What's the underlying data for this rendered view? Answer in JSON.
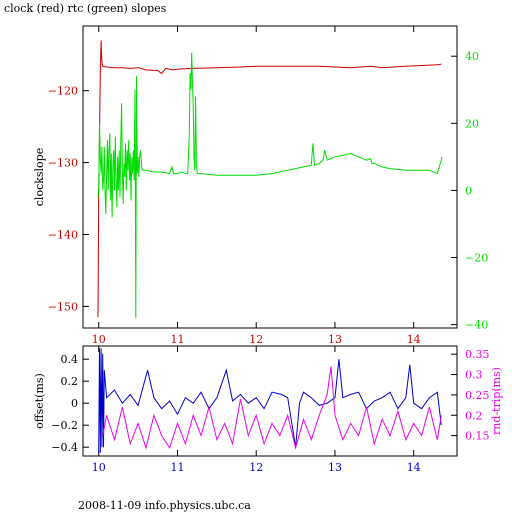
{
  "title": "clock (red) rtc (green) slopes",
  "footer": "2008-11-09 info.physics.ubc.ca",
  "colors": {
    "red": "#cc0000",
    "green": "#00dd00",
    "blue": "#0000cc",
    "magenta": "#ee00ee",
    "axis": "#000000"
  },
  "chart_data": [
    {
      "type": "line",
      "title": "clock (red) rtc (green) slopes",
      "xlim": [
        9.8,
        14.55
      ],
      "x_ticks": [
        10,
        11,
        12,
        13,
        14
      ],
      "ylabel": "clockslope",
      "ylim_left": [
        -153,
        -111
      ],
      "y_ticks_left": [
        -120,
        -130,
        -140,
        -150
      ],
      "ylim_right": [
        -41,
        49
      ],
      "y_ticks_right": [
        40,
        20,
        0,
        -20,
        -40
      ],
      "grid": false,
      "series": [
        {
          "name": "clock",
          "color": "#cc0000",
          "axis": "left",
          "points": [
            [
              9.99,
              -151.5
            ],
            [
              10.0,
              -134
            ],
            [
              10.01,
              -126
            ],
            [
              10.02,
              -117.5
            ],
            [
              10.03,
              -113
            ],
            [
              10.04,
              -116
            ],
            [
              10.05,
              -116.6
            ],
            [
              10.1,
              -116.7
            ],
            [
              10.2,
              -116.8
            ],
            [
              10.3,
              -116.8
            ],
            [
              10.4,
              -116.9
            ],
            [
              10.5,
              -116.8
            ],
            [
              10.6,
              -117.1
            ],
            [
              10.75,
              -117.2
            ],
            [
              10.8,
              -117.6
            ],
            [
              10.85,
              -116.9
            ],
            [
              10.95,
              -117.1
            ],
            [
              11.0,
              -117.0
            ],
            [
              11.2,
              -116.9
            ],
            [
              11.5,
              -116.8
            ],
            [
              11.8,
              -116.7
            ],
            [
              12.0,
              -116.6
            ],
            [
              12.3,
              -116.6
            ],
            [
              12.5,
              -116.6
            ],
            [
              12.8,
              -116.6
            ],
            [
              13.0,
              -116.7
            ],
            [
              13.2,
              -116.8
            ],
            [
              13.45,
              -116.6
            ],
            [
              13.6,
              -116.8
            ],
            [
              13.9,
              -116.6
            ],
            [
              14.1,
              -116.5
            ],
            [
              14.3,
              -116.4
            ],
            [
              14.35,
              -116.3
            ]
          ]
        },
        {
          "name": "rtc",
          "color": "#00dd00",
          "axis": "right",
          "points": [
            [
              9.99,
              -2
            ],
            [
              10.0,
              0
            ],
            [
              10.01,
              20
            ],
            [
              10.02,
              10
            ],
            [
              10.03,
              5
            ],
            [
              10.04,
              13
            ],
            [
              10.05,
              0
            ],
            [
              10.06,
              3
            ],
            [
              10.07,
              13
            ],
            [
              10.08,
              0
            ],
            [
              10.09,
              -7
            ],
            [
              10.1,
              5
            ],
            [
              10.11,
              15
            ],
            [
              10.12,
              0
            ],
            [
              10.13,
              12
            ],
            [
              10.14,
              17
            ],
            [
              10.15,
              -3
            ],
            [
              10.16,
              11
            ],
            [
              10.17,
              -8
            ],
            [
              10.18,
              8
            ],
            [
              10.19,
              12
            ],
            [
              10.2,
              0
            ],
            [
              10.21,
              16
            ],
            [
              10.22,
              2
            ],
            [
              10.23,
              -5
            ],
            [
              10.24,
              10
            ],
            [
              10.25,
              0
            ],
            [
              10.26,
              12
            ],
            [
              10.27,
              -2
            ],
            [
              10.28,
              15
            ],
            [
              10.29,
              26
            ],
            [
              10.3,
              5
            ],
            [
              10.31,
              -4
            ],
            [
              10.32,
              8
            ],
            [
              10.33,
              4
            ],
            [
              10.34,
              14
            ],
            [
              10.35,
              0
            ],
            [
              10.36,
              12
            ],
            [
              10.37,
              6
            ],
            [
              10.38,
              15
            ],
            [
              10.39,
              3
            ],
            [
              10.4,
              11
            ],
            [
              10.41,
              -3
            ],
            [
              10.42,
              10
            ],
            [
              10.43,
              5
            ],
            [
              10.44,
              12
            ],
            [
              10.45,
              3
            ],
            [
              10.46,
              30
            ],
            [
              10.47,
              -38
            ],
            [
              10.48,
              34
            ],
            [
              10.49,
              5
            ],
            [
              10.5,
              10
            ],
            [
              10.51,
              4
            ],
            [
              10.52,
              10
            ],
            [
              10.53,
              12
            ],
            [
              10.55,
              6
            ],
            [
              10.6,
              6
            ],
            [
              10.7,
              5.5
            ],
            [
              10.8,
              5.5
            ],
            [
              10.9,
              5
            ],
            [
              10.93,
              7
            ],
            [
              10.95,
              5
            ],
            [
              11.0,
              5
            ],
            [
              11.05,
              5.5
            ],
            [
              11.1,
              5
            ],
            [
              11.13,
              5
            ],
            [
              11.15,
              17
            ],
            [
              11.16,
              35
            ],
            [
              11.17,
              30
            ],
            [
              11.18,
              41
            ],
            [
              11.19,
              33
            ],
            [
              11.2,
              25
            ],
            [
              11.21,
              10
            ],
            [
              11.22,
              6
            ],
            [
              11.23,
              28
            ],
            [
              11.24,
              8
            ],
            [
              11.25,
              5
            ],
            [
              11.3,
              5
            ],
            [
              11.5,
              4.5
            ],
            [
              11.8,
              4.5
            ],
            [
              12.0,
              4.5
            ],
            [
              12.2,
              5
            ],
            [
              12.4,
              6
            ],
            [
              12.6,
              7
            ],
            [
              12.7,
              7.5
            ],
            [
              12.72,
              14
            ],
            [
              12.74,
              7.5
            ],
            [
              12.8,
              8
            ],
            [
              12.85,
              9
            ],
            [
              12.87,
              12
            ],
            [
              12.9,
              9
            ],
            [
              13.0,
              10
            ],
            [
              13.1,
              10.5
            ],
            [
              13.2,
              11
            ],
            [
              13.3,
              10
            ],
            [
              13.4,
              9
            ],
            [
              13.45,
              9.5
            ],
            [
              13.47,
              8
            ],
            [
              13.5,
              8
            ],
            [
              13.6,
              7
            ],
            [
              13.7,
              6.5
            ],
            [
              13.9,
              6
            ],
            [
              14.0,
              6
            ],
            [
              14.1,
              6
            ],
            [
              14.2,
              6
            ],
            [
              14.3,
              5
            ],
            [
              14.35,
              9
            ],
            [
              14.36,
              10
            ]
          ]
        }
      ]
    },
    {
      "type": "line",
      "xlim": [
        9.8,
        14.55
      ],
      "x_ticks": [
        10,
        11,
        12,
        13,
        14
      ],
      "ylabel": "offset(ms)",
      "ylim_left": [
        -0.48,
        0.52
      ],
      "y_ticks_left": [
        0.4,
        0.2,
        0,
        -0.2,
        -0.4
      ],
      "ylabel_right": "rnd-trip(ms)",
      "ylim_right": [
        0.1,
        0.37
      ],
      "y_ticks_right": [
        0.35,
        0.3,
        0.25,
        0.2,
        0.15
      ],
      "grid": false,
      "series": [
        {
          "name": "offset",
          "color": "#0000cc",
          "axis": "left",
          "points": [
            [
              10.0,
              -0.45
            ],
            [
              10.01,
              0.5
            ],
            [
              10.02,
              -0.45
            ],
            [
              10.03,
              0.5
            ],
            [
              10.04,
              -0.4
            ],
            [
              10.05,
              0.45
            ],
            [
              10.06,
              -0.4
            ],
            [
              10.07,
              0.3
            ],
            [
              10.1,
              0.05
            ],
            [
              10.2,
              0.12
            ],
            [
              10.3,
              0.0
            ],
            [
              10.4,
              0.08
            ],
            [
              10.5,
              -0.02
            ],
            [
              10.62,
              0.3
            ],
            [
              10.7,
              0.05
            ],
            [
              10.8,
              -0.05
            ],
            [
              10.9,
              0.02
            ],
            [
              11.0,
              -0.1
            ],
            [
              11.1,
              0.05
            ],
            [
              11.2,
              0.0
            ],
            [
              11.3,
              0.1
            ],
            [
              11.4,
              -0.05
            ],
            [
              11.5,
              0.05
            ],
            [
              11.62,
              0.3
            ],
            [
              11.7,
              0.02
            ],
            [
              11.8,
              0.08
            ],
            [
              11.9,
              0.0
            ],
            [
              12.0,
              0.05
            ],
            [
              12.1,
              -0.05
            ],
            [
              12.2,
              0.1
            ],
            [
              12.32,
              0.08
            ],
            [
              12.4,
              0.05
            ],
            [
              12.5,
              -0.4
            ],
            [
              12.55,
              0.0
            ],
            [
              12.6,
              0.1
            ],
            [
              12.7,
              0.05
            ],
            [
              12.8,
              -0.02
            ],
            [
              12.9,
              0.0
            ],
            [
              13.0,
              0.05
            ],
            [
              13.05,
              0.4
            ],
            [
              13.1,
              0.05
            ],
            [
              13.2,
              0.08
            ],
            [
              13.3,
              0.1
            ],
            [
              13.4,
              -0.05
            ],
            [
              13.5,
              0.02
            ],
            [
              13.6,
              0.05
            ],
            [
              13.7,
              0.1
            ],
            [
              13.8,
              -0.05
            ],
            [
              13.9,
              0.05
            ],
            [
              13.95,
              0.35
            ],
            [
              14.0,
              0.0
            ],
            [
              14.1,
              -0.05
            ],
            [
              14.2,
              0.05
            ],
            [
              14.3,
              0.1
            ],
            [
              14.35,
              -0.2
            ]
          ]
        },
        {
          "name": "rnd-trip",
          "color": "#ee00ee",
          "axis": "right",
          "points": [
            [
              10.05,
              0.15
            ],
            [
              10.1,
              0.2
            ],
            [
              10.2,
              0.14
            ],
            [
              10.3,
              0.22
            ],
            [
              10.4,
              0.13
            ],
            [
              10.5,
              0.18
            ],
            [
              10.6,
              0.12
            ],
            [
              10.7,
              0.2
            ],
            [
              10.8,
              0.15
            ],
            [
              10.9,
              0.12
            ],
            [
              11.0,
              0.18
            ],
            [
              11.1,
              0.13
            ],
            [
              11.2,
              0.2
            ],
            [
              11.3,
              0.15
            ],
            [
              11.4,
              0.22
            ],
            [
              11.5,
              0.14
            ],
            [
              11.6,
              0.18
            ],
            [
              11.7,
              0.13
            ],
            [
              11.8,
              0.24
            ],
            [
              11.9,
              0.15
            ],
            [
              12.0,
              0.2
            ],
            [
              12.1,
              0.13
            ],
            [
              12.2,
              0.18
            ],
            [
              12.3,
              0.15
            ],
            [
              12.4,
              0.2
            ],
            [
              12.5,
              0.12
            ],
            [
              12.6,
              0.19
            ],
            [
              12.7,
              0.14
            ],
            [
              12.8,
              0.2
            ],
            [
              12.9,
              0.25
            ],
            [
              12.95,
              0.32
            ],
            [
              13.0,
              0.2
            ],
            [
              13.1,
              0.14
            ],
            [
              13.2,
              0.18
            ],
            [
              13.3,
              0.15
            ],
            [
              13.4,
              0.22
            ],
            [
              13.5,
              0.13
            ],
            [
              13.6,
              0.19
            ],
            [
              13.7,
              0.15
            ],
            [
              13.8,
              0.21
            ],
            [
              13.9,
              0.14
            ],
            [
              14.0,
              0.18
            ],
            [
              14.1,
              0.15
            ],
            [
              14.2,
              0.22
            ],
            [
              14.3,
              0.14
            ],
            [
              14.35,
              0.2
            ]
          ]
        }
      ]
    }
  ]
}
